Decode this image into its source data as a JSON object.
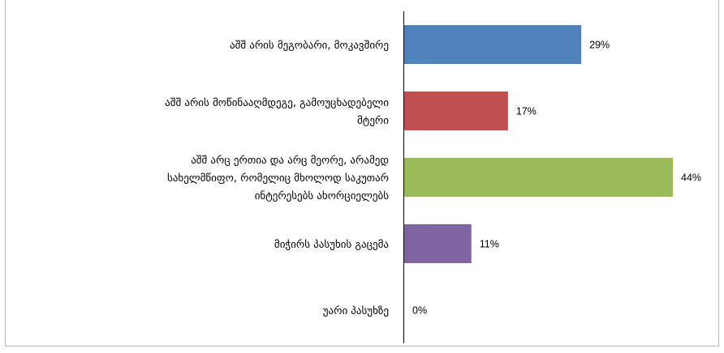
{
  "chart_data": {
    "type": "bar",
    "orientation": "horizontal",
    "categories": [
      "აშშ არის მეგობარი, მოკავშირე",
      "აშშ არის მოწინააღმდეგე, გამოუცხადებელი მტერი",
      "აშშ არც ერთია და არც მეორე, არამედ სახელმწიფო, რომელიც მხოლოდ საკუთარ ინტერესებს ახორციელებს",
      "მიჭირს პასუხის გაცემა",
      "უარი პასუხზე"
    ],
    "category_lines": [
      [
        "აშშ არის მეგობარი, მოკავშირე"
      ],
      [
        "აშშ არის მოწინააღმდეგე, გამოუცხადებელი",
        "მტერი"
      ],
      [
        "აშშ არც ერთია და არც მეორე, არამედ",
        "სახელმწიფო, რომელიც მხოლოდ საკუთარ",
        "ინტერესებს ახორციელებს"
      ],
      [
        "მიჭირს პასუხის გაცემა"
      ],
      [
        "უარი პასუხზე"
      ]
    ],
    "values": [
      29,
      17,
      44,
      11,
      0
    ],
    "value_labels": [
      "29%",
      "17%",
      "44%",
      "11%",
      "0%"
    ],
    "colors": [
      "#4F81BD",
      "#C0504D",
      "#9BBB59",
      "#8064A2",
      "#4BACC6"
    ],
    "xlim": [
      0,
      50
    ],
    "grid": false,
    "legend": "none",
    "title": "",
    "xlabel": "",
    "ylabel": ""
  }
}
